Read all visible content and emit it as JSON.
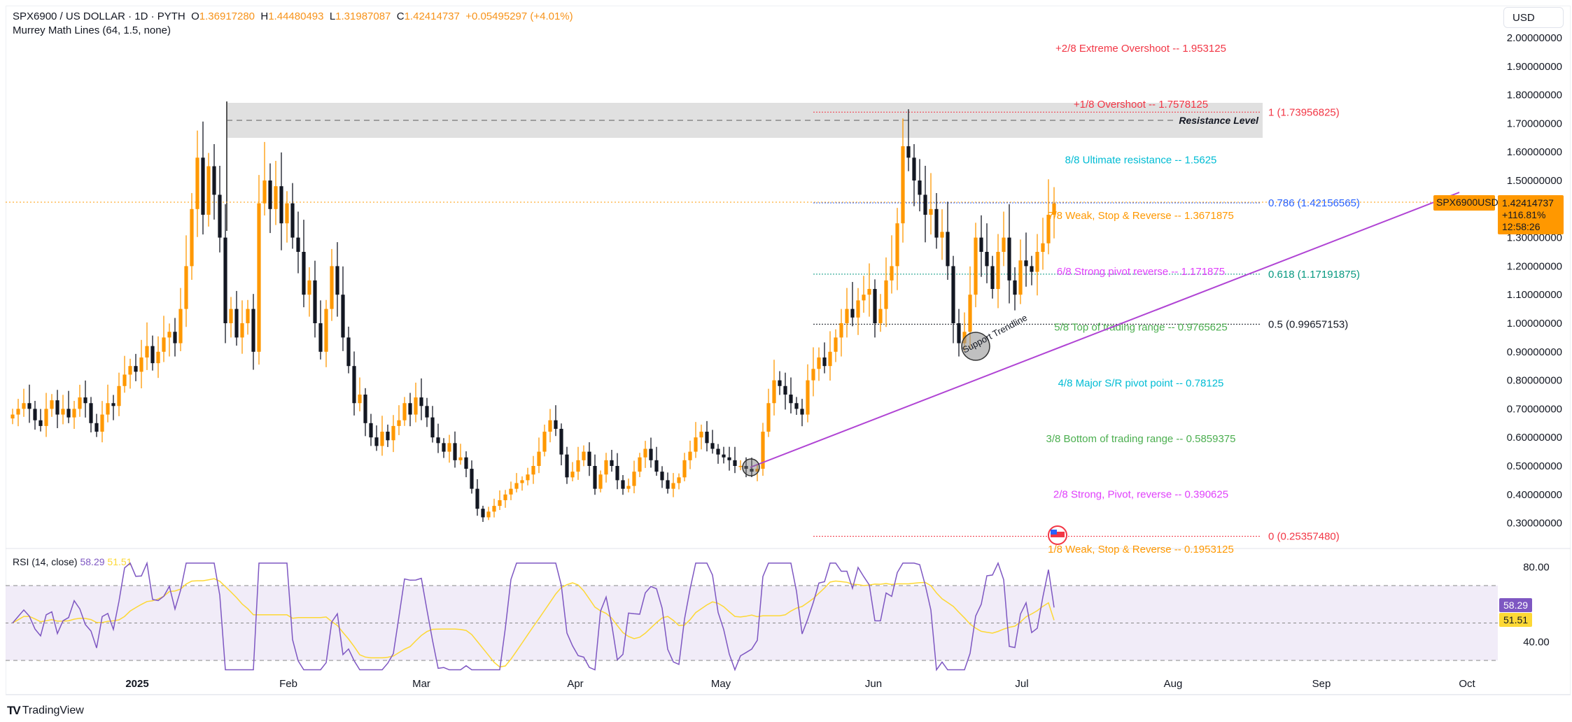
{
  "header": {
    "symbol_title": "SPX6900 / US DOLLAR · 1D · PYTH",
    "open_label": "O",
    "open": "1.36917280",
    "high_label": "H",
    "high": "1.44480493",
    "low_label": "L",
    "low": "1.31987087",
    "close_label": "C",
    "close": "1.42414737",
    "change": "+0.05495297 (+4.01%)",
    "indicator": "Murrey Math Lines (64, 1.5, none)"
  },
  "price_axis": {
    "currency": "USD",
    "ticks": [
      "2.00000000",
      "1.90000000",
      "1.80000000",
      "1.70000000",
      "1.60000000",
      "1.50000000",
      "1.30000000",
      "1.20000000",
      "1.10000000",
      "1.00000000",
      "0.90000000",
      "0.80000000",
      "0.70000000",
      "0.60000000",
      "0.50000000",
      "0.40000000",
      "0.30000000"
    ],
    "symbol_tag": "SPX6900USD",
    "last_price": "1.42414737",
    "change_pct": "+116.81%",
    "countdown": "12:58:26"
  },
  "murrey_lines": [
    {
      "label": "+2/8 Extreme Overshoot --  1.953125",
      "price": 1.953125,
      "color": "#f23645"
    },
    {
      "label": "+1/8 Overshoot --  1.7578125",
      "price": 1.7578125,
      "color": "#f23645"
    },
    {
      "label": "8/8 Ultimate resistance --  1.5625",
      "price": 1.5625,
      "color": "#00bcd4"
    },
    {
      "label": "7/8 Weak, Stop & Reverse --  1.3671875",
      "price": 1.3671875,
      "color": "#ff9800"
    },
    {
      "label": "6/8 Strong pivot reverse --  1.171875",
      "price": 1.171875,
      "color": "#e040fb"
    },
    {
      "label": "5/8 Top of trading range --  0.9765625",
      "price": 0.9765625,
      "color": "#4caf50"
    },
    {
      "label": "4/8 Major S/R pivot point --  0.78125",
      "price": 0.78125,
      "color": "#00bcd4"
    },
    {
      "label": "3/8 Bottom of trading range --  0.5859375",
      "price": 0.5859375,
      "color": "#4caf50"
    },
    {
      "label": "2/8 Strong, Pivot, reverse --  0.390625",
      "price": 0.390625,
      "color": "#e040fb"
    },
    {
      "label": "1/8 Weak, Stop & Reverse --  0.1953125",
      "price": 0.1953125,
      "color": "#ff9800"
    }
  ],
  "fib_levels": [
    {
      "label": "1 (1.73956825)",
      "price": 1.73956825,
      "color": "#f23645"
    },
    {
      "label": "0.786 (1.42156565)",
      "price": 1.42156565,
      "color": "#2962ff"
    },
    {
      "label": "0.618 (1.17191875)",
      "price": 1.17191875,
      "color": "#089981"
    },
    {
      "label": "0.5 (0.99657153)",
      "price": 0.99657153,
      "color": "#131722"
    },
    {
      "label": "0 (0.25357480)",
      "price": 0.2535748,
      "color": "#f23645"
    }
  ],
  "annotations": {
    "resistance_label": "Resistance Level",
    "support_label": "Support Trendline"
  },
  "rsi": {
    "title": "RSI (14, close)",
    "value": "58.29",
    "ma_value": "51.51",
    "axis_ticks": [
      "80.00",
      "40.00"
    ],
    "line_color": "#7e57c2",
    "ma_color": "#fdd835"
  },
  "time_axis": {
    "labels": [
      "2025",
      "Feb",
      "Mar",
      "Apr",
      "May",
      "Jun",
      "Jul",
      "Aug",
      "Sep",
      "Oct"
    ]
  },
  "branding": {
    "name": "TradingView"
  },
  "colors": {
    "up": "#ff9800",
    "down": "#131722",
    "accent": "#ff9800"
  },
  "chart_data": {
    "type": "candlestick",
    "title": "SPX6900 / US DOLLAR · 1D · PYTH",
    "ylabel": "USD",
    "ylim": [
      0.25,
      2.05
    ],
    "x_labels": [
      "2025",
      "Feb",
      "Mar",
      "Apr",
      "May",
      "Jun",
      "Jul",
      "Aug",
      "Sep",
      "Oct"
    ],
    "series_close_approx": [
      0.68,
      0.7,
      0.72,
      0.7,
      0.66,
      0.64,
      0.7,
      0.73,
      0.68,
      0.7,
      0.67,
      0.7,
      0.74,
      0.72,
      0.65,
      0.62,
      0.68,
      0.72,
      0.71,
      0.78,
      0.82,
      0.85,
      0.83,
      0.88,
      0.92,
      0.86,
      0.9,
      0.95,
      0.97,
      0.93,
      1.05,
      1.2,
      1.4,
      1.58,
      1.38,
      1.55,
      1.45,
      1.3,
      1.0,
      1.05,
      0.95,
      1.0,
      1.05,
      0.9,
      1.42,
      1.5,
      1.4,
      1.48,
      1.35,
      1.42,
      1.3,
      1.25,
      1.1,
      1.15,
      1.0,
      0.9,
      1.05,
      1.2,
      1.1,
      0.95,
      0.85,
      0.72,
      0.75,
      0.65,
      0.6,
      0.57,
      0.62,
      0.59,
      0.64,
      0.66,
      0.72,
      0.68,
      0.74,
      0.71,
      0.67,
      0.6,
      0.58,
      0.55,
      0.58,
      0.52,
      0.53,
      0.49,
      0.42,
      0.35,
      0.32,
      0.34,
      0.36,
      0.38,
      0.4,
      0.42,
      0.44,
      0.45,
      0.47,
      0.5,
      0.55,
      0.62,
      0.66,
      0.63,
      0.54,
      0.46,
      0.48,
      0.52,
      0.55,
      0.5,
      0.42,
      0.47,
      0.52,
      0.5,
      0.45,
      0.42,
      0.43,
      0.48,
      0.53,
      0.56,
      0.52,
      0.48,
      0.45,
      0.42,
      0.44,
      0.46,
      0.52,
      0.55,
      0.6,
      0.62,
      0.58,
      0.56,
      0.54,
      0.53,
      0.52,
      0.5,
      0.5,
      0.49,
      0.48,
      0.49,
      0.62,
      0.72,
      0.8,
      0.78,
      0.75,
      0.72,
      0.7,
      0.68,
      0.8,
      0.84,
      0.88,
      0.85,
      0.9,
      0.95,
      1.0,
      1.05,
      1.02,
      1.08,
      1.1,
      1.12,
      1.0,
      1.05,
      1.15,
      1.2,
      1.35,
      1.62,
      1.58,
      1.5,
      1.45,
      1.38,
      1.4,
      1.3,
      1.32,
      1.2,
      1.0,
      0.93,
      0.97,
      1.1,
      1.3,
      1.25,
      1.2,
      1.12,
      1.25,
      1.3,
      1.15,
      1.1,
      1.22,
      1.2,
      1.18,
      1.25,
      1.28,
      1.38,
      1.42
    ],
    "murrey_levels": [
      1.953125,
      1.7578125,
      1.5625,
      1.3671875,
      1.171875,
      0.9765625,
      0.78125,
      0.5859375,
      0.390625,
      0.1953125
    ],
    "fib_levels": {
      "1": 1.73956825,
      "0.786": 1.42156565,
      "0.618": 1.17191875,
      "0.5": 0.99657153,
      "0": 0.2535748
    },
    "last_price": 1.42414737,
    "rsi": {
      "value": 58.29,
      "ma": 51.51,
      "upper_band": 70,
      "lower_band": 30,
      "middle": 50
    }
  }
}
